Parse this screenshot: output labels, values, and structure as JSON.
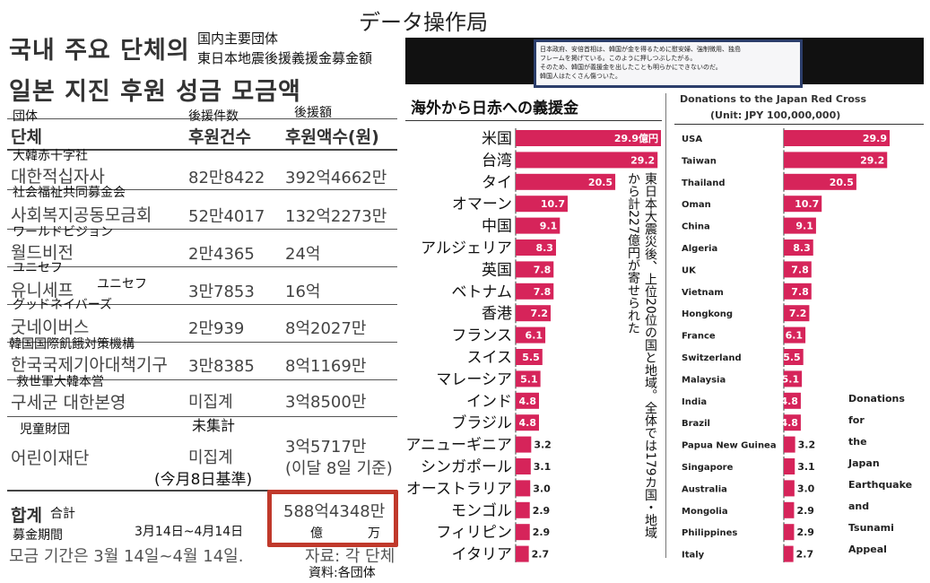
{
  "headline": "データ操作局",
  "korean_panel": {
    "title_line1": "국내 주요 단체의",
    "title_line2": "일본 지진 후원 성금 모금액",
    "jp_title_line1": "国内主要団体",
    "jp_title_line2": "東日本地震後援義援金募金額",
    "col_jp": {
      "group": "団体",
      "count": "後援件数",
      "amount": "後援額"
    },
    "col_ko": {
      "group": "단체",
      "count": "후원건수",
      "amount": "후원액수(원)"
    },
    "rows": [
      {
        "jp": "大韓赤十字社",
        "ko": "대한적십자사",
        "count": "82만8422",
        "amount": "392억4662만"
      },
      {
        "jp": "社会福祉共同募金会",
        "ko": "사회복지공동모금회",
        "count": "52만4017",
        "amount": "132억2273만"
      },
      {
        "jp": "ワールドビジョン",
        "ko": "월드비전",
        "count": "2만4365",
        "amount": "24억"
      },
      {
        "jp": "ユニセフ",
        "ko": "유니세프",
        "count": "3만7853",
        "amount": "16억",
        "jp_extra": "ユニセフ"
      },
      {
        "jp": "グッドネイバーズ",
        "ko": "굿네이버스",
        "count": "2만939",
        "amount": "8억2027만"
      },
      {
        "jp": "韓国国際飢餓対策機構",
        "ko": "한국국제기아대책기구",
        "count": "3만8385",
        "amount": "8억1169만"
      },
      {
        "jp": "救世軍大韓本営",
        "ko": "구세군 대한본영",
        "count": "미집계",
        "amount": "3억8500만"
      },
      {
        "jp": "児童財団",
        "ko": "어린이재단",
        "count": "미집계",
        "amount": "3억5717만",
        "amount_note": "(이달 8일 기준)"
      }
    ],
    "uncounted_jp": "未集計",
    "as_of_jp": "(今月8日基準)",
    "total_ko": "합계",
    "total_jp": "合計",
    "total_amount": "588억4348만",
    "unit_oku": "億",
    "unit_man": "万",
    "period_jp_label": "募金期間",
    "period_jp": "3月14日~4月14日",
    "period_ko": "모금 기간은 3월 14일~4월 14일.",
    "source_ko": "자료: 각 단체",
    "source_jp": "資料:各団体"
  },
  "japan_panel": {
    "note_lines": [
      "日本政府、安倍首相は、韓国が金を得るために慰安婦、強制徴用、独島",
      "フレームを掲げている。このように押しつぶしたがる。",
      "そのため、韓国が義援金を出したことも明らかにできないのだ。",
      "韓国人はたくさん傷ついた。"
    ],
    "jp_title": "海外から日赤への義援金",
    "en_title": "Donations to the Japan Red Cross",
    "en_unit": "(Unit: JPY 100,000,000)",
    "vertical_note": "東日本大震災後、上位20位の国と地域。全体では179カ国・地域から計227億円が寄せられた",
    "side_caption": [
      "Donations",
      "for",
      "the",
      "Japan",
      "Earthquake",
      "and",
      "Tsunami",
      "Appeal"
    ],
    "bar_color": "#d6245a",
    "first_bar_unit": "億円"
  },
  "chart_data": {
    "type": "bar",
    "title": "海外から日赤への義援金",
    "subtitle": "Donations to the Japan Red Cross (Unit: JPY 100,000,000)",
    "categories_jp": [
      "米国",
      "台湾",
      "タイ",
      "オマーン",
      "中国",
      "アルジェリア",
      "英国",
      "ベトナム",
      "香港",
      "フランス",
      "スイス",
      "マレーシア",
      "インド",
      "ブラジル",
      "パプアニューギニア",
      "シンガポール",
      "オーストラリア",
      "モンゴル",
      "フィリピン",
      "イタリア"
    ],
    "categories_en": [
      "USA",
      "Taiwan",
      "Thailand",
      "Oman",
      "China",
      "Algeria",
      "UK",
      "Vietnam",
      "Hongkong",
      "France",
      "Switzerland",
      "Malaysia",
      "India",
      "Brazil",
      "Papua New Guinea",
      "Singapore",
      "Australia",
      "Mongolia",
      "Philippines",
      "Italy"
    ],
    "values": [
      29.9,
      29.2,
      20.5,
      10.7,
      9.1,
      8.3,
      7.8,
      7.8,
      7.2,
      6.1,
      5.5,
      5.1,
      4.8,
      4.8,
      3.2,
      3.1,
      3.0,
      2.9,
      2.9,
      2.7
    ],
    "value_labels": [
      "29.9",
      "29.2",
      "20.5",
      "10.7",
      "9.1",
      "8.3",
      "7.8",
      "7.8",
      "7.2",
      "6.1",
      "5.5",
      "5.1",
      "4.8",
      "4.8",
      "3.2",
      "3.1",
      "3.0",
      "2.9",
      "2.9",
      "2.7"
    ]
  }
}
